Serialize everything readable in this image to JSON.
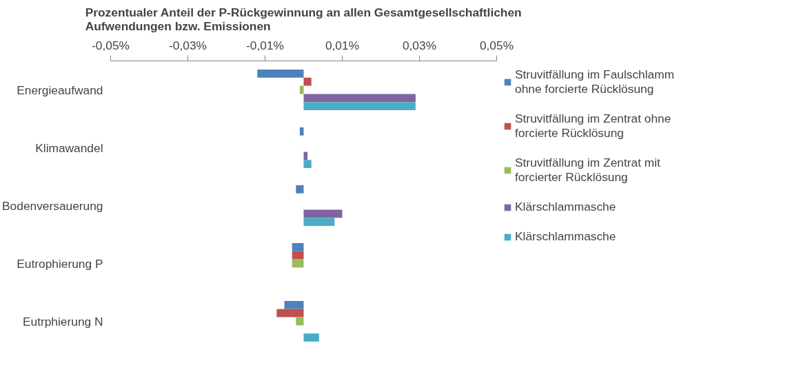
{
  "chart_data": {
    "type": "bar",
    "orientation": "horizontal",
    "title": "Prozentualer Anteil der P-Rückgewinnung an allen Gesamtgesellschaftlichen Aufwendungen bzw. Emissionen",
    "categories": [
      "Energieaufwand",
      "Klimawandel",
      "Bodenversauerung",
      "Eutrophierung P",
      "Eutrphierung N"
    ],
    "series": [
      {
        "name": "Struvitfällung im Faulschlamm ohne forcierte Rücklösung",
        "color": "#4f81bd",
        "values": [
          -0.012,
          -0.001,
          -0.002,
          -0.003,
          -0.005
        ]
      },
      {
        "name": "Struvitfällung im Zentrat ohne forcierte Rücklösung",
        "color": "#c0504d",
        "values": [
          0.002,
          0,
          0,
          -0.003,
          -0.007
        ]
      },
      {
        "name": "Struvitfällung im Zentrat mit forcierter Rücklösung",
        "color": "#9bbb59",
        "values": [
          -0.001,
          0,
          0,
          -0.003,
          -0.002
        ]
      },
      {
        "name": "Klärschlammasche",
        "color": "#8064a2",
        "values": [
          0.029,
          0.001,
          0.01,
          0,
          0
        ]
      },
      {
        "name": "Klärschlammasche",
        "color": "#4bacc6",
        "values": [
          0.029,
          0.002,
          0.008,
          0,
          0.004
        ]
      }
    ],
    "xlim": [
      -0.05,
      0.05
    ],
    "xticks": [
      {
        "value": -0.05,
        "label": "-0,05%"
      },
      {
        "value": -0.03,
        "label": "-0,03%"
      },
      {
        "value": -0.01,
        "label": "-0,01%"
      },
      {
        "value": 0.01,
        "label": "0,01%"
      },
      {
        "value": 0.03,
        "label": "0,03%"
      },
      {
        "value": 0.05,
        "label": "0,05%"
      }
    ],
    "grid": false,
    "legend": "right"
  }
}
